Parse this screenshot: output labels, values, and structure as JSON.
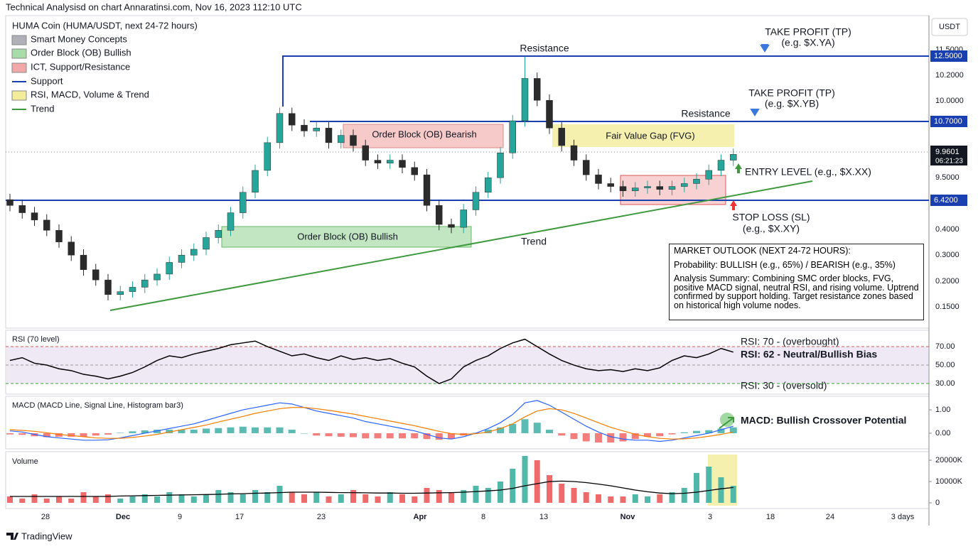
{
  "header": {
    "title": "Technical Analysisd on chart Annaratinsi.com, Nov 16, 2023 112:10 UTC",
    "symbol": "HUMA Coin (HUMA/USDT, next 24-72 hours)",
    "currency": "USDT",
    "brand": "TradingView"
  },
  "legend": [
    {
      "label": "Smart Money Concepts",
      "color": "#b0b0b8"
    },
    {
      "label": "Order Block (OB) Bullish",
      "color": "#a8dca8"
    },
    {
      "label": "ICT, Support/Resistance",
      "color": "#f2a8a8"
    },
    {
      "label": "Support",
      "color": "#1a3fb0"
    },
    {
      "label": "RSI, MACD, Volume & Trend",
      "color": "#f3ec9a"
    },
    {
      "label": "Trend",
      "color": "#3f9a3f"
    }
  ],
  "price_labels": [
    "11.5000",
    "10.2000",
    "10.0000",
    "9.5000",
    "0.4000",
    "0.3000",
    "0.2000",
    "0.1500"
  ],
  "price_tags": [
    "12.5000",
    "10.7000",
    "6.4200"
  ],
  "last_price": {
    "price": "9.9601",
    "countdown": "06:21:23"
  },
  "x_labels": [
    "28",
    "Dec",
    "9",
    "17",
    "23",
    "Apr",
    "8",
    "13",
    "Nov",
    "3",
    "18",
    "24",
    "3 days"
  ],
  "annotations": {
    "resistance_1": "Resistance",
    "resistance_2": "Resistance",
    "tp1": "TAKE PROFIT (TP)",
    "tp1_eg": "(e.g. $X.YA)",
    "tp2": "TAKE PROFIT (TP)",
    "tp2_eg": "(e.g. $X.YB)",
    "entry": "ENTRY LEVEL (e.g., $X.XX)",
    "sl": "STOP LOSS (SL)",
    "sl_eg": "(e.g., $X.XY)",
    "trend": "Trend",
    "ob_bearish": "Order Block (OB) Bearish",
    "fvg": "Fair Value Gap (FVG)",
    "ob_bullish": "Order Block (OB) Bullish",
    "rsi_70": "RSI: 70 - (overbought)",
    "rsi_62": "RSI: 62 - Neutral/Bullish Bias",
    "rsi_30": "RSI: 30 - (oversold)",
    "macd_note": "MACD: Bullish Crossover Potential"
  },
  "outlook": {
    "title": "MARKET OUTLOOK (NEXT 24-72 HOURS):",
    "probability": "Probability: BULLISH (e.g., 65%) / BEARISH (e.g., 35%)",
    "summary": "Analysis Summary: Combining SMC order blocks, FVG, positive MACD signal, neutral RSI, and rising volume. Uptrend confirmed by support holding. Target resistance zones based on historical high volume nodes."
  },
  "chart_data": [
    {
      "type": "candlestick",
      "up_color": "#26a69a",
      "down_color": "#2b2b2b",
      "ylim": [
        8.47,
        10.61
      ],
      "open": [
        9.35,
        9.31,
        9.26,
        9.21,
        9.14,
        9.06,
        8.97,
        8.87,
        8.8,
        8.7,
        8.72,
        8.75,
        8.8,
        8.84,
        8.92,
        8.97,
        9.01,
        9.09,
        9.14,
        9.26,
        9.4,
        9.55,
        9.74,
        9.94,
        9.86,
        9.82,
        9.84,
        9.74,
        9.79,
        9.72,
        9.62,
        9.6,
        9.62,
        9.57,
        9.52,
        9.31,
        9.18,
        9.16,
        9.28,
        9.4,
        9.5,
        9.67,
        9.89,
        10.18,
        10.03,
        9.84,
        9.72,
        9.62,
        9.52,
        9.46,
        9.44,
        9.41,
        9.43,
        9.44,
        9.42,
        9.44,
        9.46,
        9.49,
        9.55,
        9.62
      ],
      "high": [
        9.39,
        9.35,
        9.3,
        9.25,
        9.18,
        9.1,
        9.01,
        8.91,
        8.84,
        8.76,
        8.79,
        8.84,
        8.88,
        8.96,
        9.01,
        9.05,
        9.13,
        9.18,
        9.3,
        9.44,
        9.59,
        9.78,
        9.98,
        9.98,
        9.9,
        9.88,
        9.88,
        9.83,
        9.83,
        9.76,
        9.66,
        9.66,
        9.66,
        9.61,
        9.56,
        9.35,
        9.22,
        9.32,
        9.44,
        9.54,
        9.71,
        9.93,
        10.33,
        10.22,
        10.07,
        9.88,
        9.76,
        9.66,
        9.56,
        9.5,
        9.48,
        9.47,
        9.48,
        9.48,
        9.48,
        9.5,
        9.53,
        9.59,
        9.66,
        9.7
      ],
      "low": [
        9.27,
        9.22,
        9.17,
        9.1,
        9.02,
        8.93,
        8.83,
        8.76,
        8.66,
        8.66,
        8.68,
        8.71,
        8.76,
        8.8,
        8.88,
        8.93,
        8.97,
        9.05,
        9.1,
        9.22,
        9.36,
        9.51,
        9.7,
        9.82,
        9.78,
        9.78,
        9.7,
        9.7,
        9.68,
        9.58,
        9.56,
        9.56,
        9.53,
        9.48,
        9.27,
        9.14,
        9.12,
        9.12,
        9.24,
        9.36,
        9.46,
        9.63,
        9.85,
        9.99,
        9.8,
        9.68,
        9.58,
        9.48,
        9.42,
        9.4,
        9.37,
        9.37,
        9.39,
        9.38,
        9.38,
        9.4,
        9.42,
        9.45,
        9.51,
        9.58
      ],
      "close": [
        9.31,
        9.26,
        9.21,
        9.14,
        9.06,
        8.97,
        8.87,
        8.8,
        8.7,
        8.72,
        8.75,
        8.8,
        8.84,
        8.92,
        8.97,
        9.01,
        9.09,
        9.14,
        9.26,
        9.4,
        9.55,
        9.74,
        9.94,
        9.86,
        9.82,
        9.84,
        9.74,
        9.79,
        9.72,
        9.62,
        9.6,
        9.62,
        9.57,
        9.52,
        9.31,
        9.18,
        9.16,
        9.28,
        9.4,
        9.5,
        9.67,
        9.89,
        10.18,
        10.03,
        9.84,
        9.72,
        9.62,
        9.52,
        9.46,
        9.44,
        9.41,
        9.43,
        9.44,
        9.42,
        9.44,
        9.46,
        9.49,
        9.55,
        9.62,
        9.66
      ]
    },
    {
      "type": "line",
      "title": "RSI (70 level)",
      "color": "#000000",
      "ylim": [
        18.5,
        87.7
      ],
      "yticks": [
        {
          "value": 30,
          "label": "30.00"
        },
        {
          "value": 50,
          "label": "50.00"
        },
        {
          "value": 70,
          "label": "70.00"
        }
      ],
      "values": [
        55,
        58,
        52,
        50,
        46,
        44,
        40,
        38,
        35,
        38,
        42,
        48,
        55,
        60,
        58,
        62,
        65,
        68,
        72,
        74,
        76,
        70,
        65,
        60,
        62,
        58,
        55,
        60,
        56,
        58,
        55,
        57,
        52,
        48,
        38,
        30,
        35,
        48,
        55,
        60,
        68,
        74,
        78,
        70,
        62,
        55,
        50,
        46,
        44,
        45,
        43,
        46,
        44,
        47,
        55,
        60,
        58,
        62,
        68,
        64
      ]
    },
    {
      "type": "macd",
      "title": "MACD (MACD Line, Signal Line, Histogram bar3)",
      "ylim": [
        -0.67,
        1.58
      ],
      "yticks": [
        {
          "value": 0,
          "label": "0.00"
        },
        {
          "value": 1,
          "label": "1.00"
        }
      ],
      "series": [
        {
          "name": "MACD Line",
          "color": "#2962ff",
          "values": [
            0.1,
            0.05,
            -0.05,
            -0.15,
            -0.2,
            -0.25,
            -0.3,
            -0.3,
            -0.28,
            -0.2,
            -0.1,
            0.0,
            0.1,
            0.2,
            0.3,
            0.4,
            0.55,
            0.7,
            0.85,
            1.0,
            1.1,
            1.2,
            1.3,
            1.25,
            1.1,
            0.95,
            0.85,
            0.75,
            0.65,
            0.5,
            0.4,
            0.3,
            0.2,
            0.1,
            -0.05,
            -0.2,
            -0.25,
            -0.15,
            0.0,
            0.2,
            0.45,
            0.8,
            1.3,
            1.4,
            1.2,
            0.9,
            0.6,
            0.3,
            0.05,
            -0.15,
            -0.25,
            -0.3,
            -0.3,
            -0.35,
            -0.3,
            -0.2,
            -0.1,
            0.0,
            0.15,
            0.3
          ]
        },
        {
          "name": "Signal Line",
          "color": "#f57c00",
          "values": [
            0.15,
            0.12,
            0.08,
            0.02,
            -0.05,
            -0.1,
            -0.15,
            -0.2,
            -0.22,
            -0.22,
            -0.18,
            -0.12,
            -0.05,
            0.05,
            0.15,
            0.25,
            0.35,
            0.48,
            0.6,
            0.72,
            0.85,
            0.95,
            1.05,
            1.1,
            1.1,
            1.05,
            0.98,
            0.9,
            0.82,
            0.72,
            0.62,
            0.52,
            0.42,
            0.32,
            0.2,
            0.08,
            -0.02,
            -0.05,
            -0.02,
            0.05,
            0.2,
            0.4,
            0.7,
            0.95,
            1.05,
            1.0,
            0.85,
            0.65,
            0.45,
            0.25,
            0.1,
            -0.05,
            -0.15,
            -0.22,
            -0.25,
            -0.24,
            -0.2,
            -0.13,
            -0.05,
            0.05
          ]
        },
        {
          "name": "Histogram",
          "color": "#26a69a",
          "negative_color": "#ef5350",
          "values": [
            -0.05,
            -0.07,
            -0.13,
            -0.17,
            -0.15,
            -0.15,
            -0.15,
            -0.1,
            -0.06,
            0.02,
            0.08,
            0.12,
            0.15,
            0.15,
            0.15,
            0.15,
            0.2,
            0.22,
            0.25,
            0.28,
            0.25,
            0.25,
            0.25,
            0.15,
            0.0,
            -0.1,
            -0.13,
            -0.15,
            -0.17,
            -0.22,
            -0.22,
            -0.22,
            -0.22,
            -0.22,
            -0.25,
            -0.28,
            -0.23,
            -0.1,
            0.02,
            0.15,
            0.25,
            0.4,
            0.6,
            0.45,
            0.15,
            -0.1,
            -0.25,
            -0.35,
            -0.4,
            -0.4,
            -0.35,
            -0.25,
            -0.15,
            -0.13,
            -0.05,
            0.04,
            0.1,
            0.13,
            0.2,
            0.25
          ]
        }
      ]
    },
    {
      "type": "volume",
      "title": "Volume",
      "ylim": [
        -2670,
        24000
      ],
      "yticks": [
        0,
        {
          "value": 10000,
          "label": "10000K"
        },
        {
          "value": 20000,
          "label": "20000K"
        }
      ],
      "up_color": "#4fb8a8",
      "down_color": "#ef6b6b",
      "ma_color": "#000000",
      "values": [
        3000,
        2000,
        4000,
        2000,
        3000,
        2000,
        5000,
        3000,
        4000,
        2000,
        3000,
        4000,
        3000,
        5000,
        4000,
        3000,
        4000,
        6000,
        5000,
        4000,
        6000,
        5000,
        8000,
        5000,
        4000,
        5000,
        3000,
        4000,
        6000,
        4000,
        3000,
        5000,
        4000,
        3000,
        7000,
        6000,
        5000,
        6000,
        8000,
        7000,
        10000,
        16000,
        22000,
        20000,
        13000,
        9000,
        7000,
        5000,
        4000,
        3000,
        3000,
        4000,
        3000,
        4000,
        5000,
        7000,
        14000,
        17000,
        12000,
        8000
      ],
      "ma": [
        3000,
        3000,
        3000,
        3000,
        3000,
        3000,
        3000,
        3000,
        3000,
        3200,
        3300,
        3400,
        3500,
        3600,
        3700,
        3800,
        3900,
        4000,
        4200,
        4300,
        4500,
        4600,
        4800,
        5000,
        5000,
        5000,
        4900,
        4800,
        4800,
        4700,
        4600,
        4600,
        4500,
        4500,
        4600,
        4700,
        4800,
        5000,
        5300,
        5600,
        6000,
        6800,
        8000,
        9000,
        10000,
        10200,
        10000,
        9500,
        8800,
        8000,
        7000,
        6000,
        5200,
        4600,
        4300,
        4500,
        5000,
        5800,
        6600,
        7200
      ]
    }
  ]
}
